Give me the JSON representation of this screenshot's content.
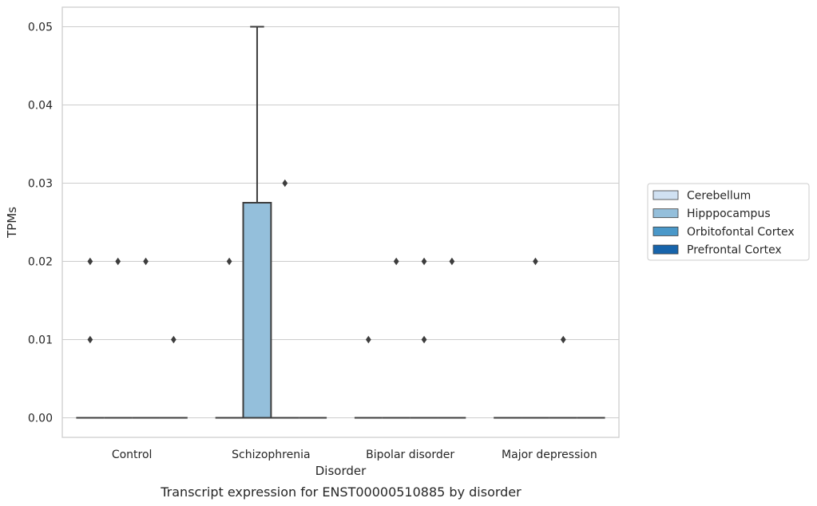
{
  "chart_data": {
    "type": "box",
    "caption": "Transcript expression for ENST00000510885 by disorder",
    "xlabel": "Disorder",
    "ylabel": "TPMs",
    "ylim": [
      -0.0025,
      0.0525
    ],
    "yticks": [
      0.0,
      0.01,
      0.02,
      0.03,
      0.04,
      0.05
    ],
    "ytick_labels": [
      "0.00",
      "0.01",
      "0.02",
      "0.03",
      "0.04",
      "0.05"
    ],
    "grid": "horizontal",
    "legend_position": "right",
    "categories": [
      "Control",
      "Schizophrenia",
      "Bipolar disorder",
      "Major depression"
    ],
    "series": [
      {
        "name": "Cerebellum",
        "color": "#d0e1f2",
        "boxes": [
          {
            "q1": 0,
            "median": 0,
            "q3": 0,
            "whisker_low": 0,
            "whisker_high": 0,
            "outliers": [
              0.02,
              0.01
            ]
          },
          {
            "q1": 0,
            "median": 0,
            "q3": 0,
            "whisker_low": 0,
            "whisker_high": 0,
            "outliers": [
              0.02
            ]
          },
          {
            "q1": 0,
            "median": 0,
            "q3": 0,
            "whisker_low": 0,
            "whisker_high": 0,
            "outliers": [
              0.01
            ]
          },
          {
            "q1": 0,
            "median": 0,
            "q3": 0,
            "whisker_low": 0,
            "whisker_high": 0,
            "outliers": []
          }
        ]
      },
      {
        "name": "Hipppocampus",
        "color": "#94bfdb",
        "boxes": [
          {
            "q1": 0,
            "median": 0,
            "q3": 0,
            "whisker_low": 0,
            "whisker_high": 0,
            "outliers": [
              0.02
            ]
          },
          {
            "q1": 0,
            "median": 0,
            "q3": 0.0275,
            "whisker_low": 0,
            "whisker_high": 0.05,
            "outliers": []
          },
          {
            "q1": 0,
            "median": 0,
            "q3": 0,
            "whisker_low": 0,
            "whisker_high": 0,
            "outliers": [
              0.02
            ]
          },
          {
            "q1": 0,
            "median": 0,
            "q3": 0,
            "whisker_low": 0,
            "whisker_high": 0,
            "outliers": [
              0.02
            ]
          }
        ]
      },
      {
        "name": "Orbitofontal Cortex",
        "color": "#4a98c9",
        "boxes": [
          {
            "q1": 0,
            "median": 0,
            "q3": 0,
            "whisker_low": 0,
            "whisker_high": 0,
            "outliers": [
              0.02
            ]
          },
          {
            "q1": 0,
            "median": 0,
            "q3": 0,
            "whisker_low": 0,
            "whisker_high": 0,
            "outliers": [
              0.03
            ]
          },
          {
            "q1": 0,
            "median": 0,
            "q3": 0,
            "whisker_low": 0,
            "whisker_high": 0,
            "outliers": [
              0.02,
              0.01
            ]
          },
          {
            "q1": 0,
            "median": 0,
            "q3": 0,
            "whisker_low": 0,
            "whisker_high": 0,
            "outliers": [
              0.01
            ]
          }
        ]
      },
      {
        "name": "Prefrontal Cortex",
        "color": "#1764ab",
        "boxes": [
          {
            "q1": 0,
            "median": 0,
            "q3": 0,
            "whisker_low": 0,
            "whisker_high": 0,
            "outliers": [
              0.01
            ]
          },
          {
            "q1": 0,
            "median": 0,
            "q3": 0,
            "whisker_low": 0,
            "whisker_high": 0,
            "outliers": []
          },
          {
            "q1": 0,
            "median": 0,
            "q3": 0,
            "whisker_low": 0,
            "whisker_high": 0,
            "outliers": [
              0.02
            ]
          },
          {
            "q1": 0,
            "median": 0,
            "q3": 0,
            "whisker_low": 0,
            "whisker_high": 0,
            "outliers": []
          }
        ]
      }
    ]
  }
}
